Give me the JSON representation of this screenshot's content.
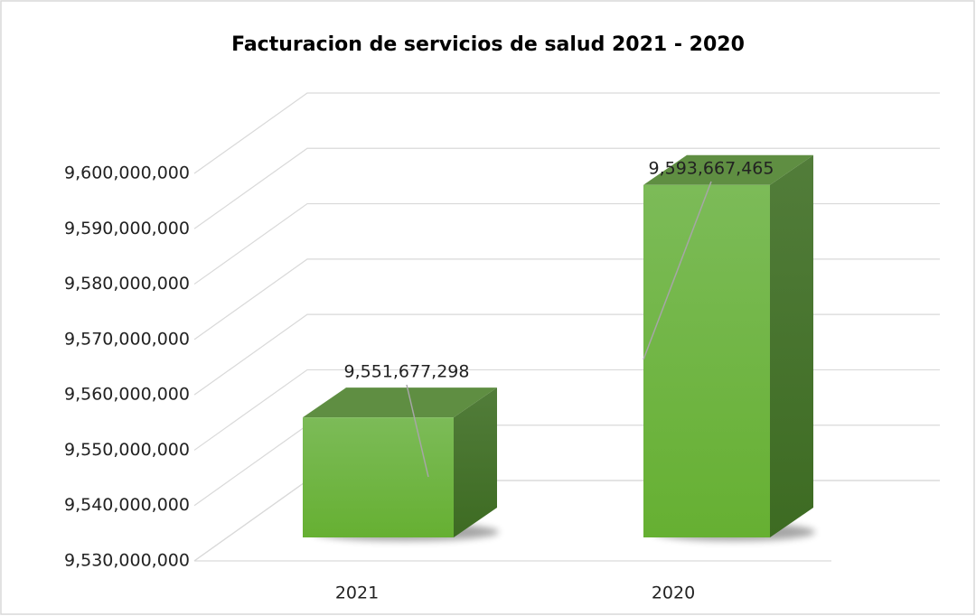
{
  "chart_data": {
    "type": "bar3d",
    "title": "Facturacion de servicios de salud 2021 - 2020",
    "categories": [
      "2021",
      "2020"
    ],
    "values": [
      9551677298,
      9593667465
    ],
    "value_labels": [
      "9,551,677,298",
      "9,593,667,465"
    ],
    "color": "#6db33f",
    "ylim": [
      9530000000,
      9600000000
    ],
    "yticks": [
      {
        "value": 9530000000,
        "label": "9,530,000,000"
      },
      {
        "value": 9540000000,
        "label": "9,540,000,000"
      },
      {
        "value": 9550000000,
        "label": "9,550,000,000"
      },
      {
        "value": 9560000000,
        "label": "9,560,000,000"
      },
      {
        "value": 9570000000,
        "label": "9,570,000,000"
      },
      {
        "value": 9580000000,
        "label": "9,580,000,000"
      },
      {
        "value": 9590000000,
        "label": "9,590,000,000"
      },
      {
        "value": 9600000000,
        "label": "9,600,000,000"
      }
    ],
    "grid": true
  }
}
